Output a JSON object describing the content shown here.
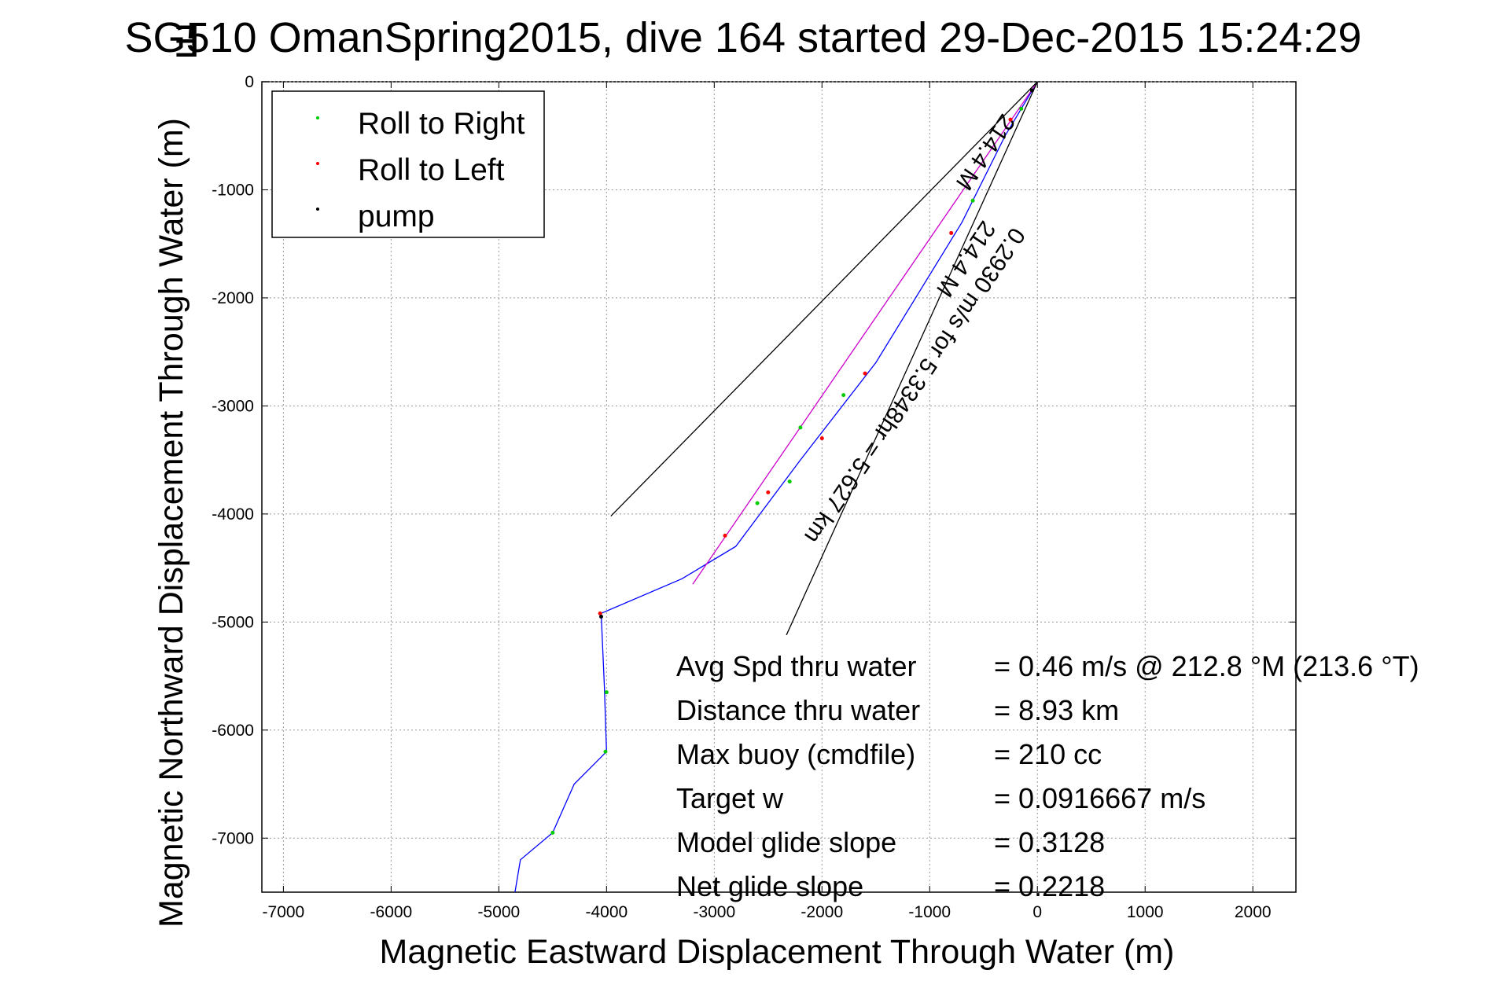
{
  "chart_data": {
    "type": "scatter",
    "title": "SG510 OmanSpring2015, dive 164 started 29-Dec-2015 15:24:29",
    "title_overlap_glyph": "∃",
    "xlabel": "Magnetic Eastward Displacement Through Water (m)",
    "ylabel": "Magnetic Northward Displacement Through Water (m)",
    "xlim": [
      -7200,
      2400
    ],
    "ylim": [
      -7500,
      0
    ],
    "grid": true,
    "legend_position": "top-left",
    "xticks": [
      -7000,
      -6000,
      -5000,
      -4000,
      -3000,
      -2000,
      -1000,
      0,
      1000,
      2000
    ],
    "yticks": [
      0,
      -1000,
      -2000,
      -3000,
      -4000,
      -5000,
      -6000,
      -7000
    ],
    "series": [
      {
        "name": "track",
        "kind": "line",
        "color": "#0000ff",
        "points": [
          [
            0,
            0
          ],
          [
            -300,
            -500
          ],
          [
            -700,
            -1300
          ],
          [
            -1500,
            -2600
          ],
          [
            -2200,
            -3500
          ],
          [
            -2800,
            -4300
          ],
          [
            -3300,
            -4600
          ],
          [
            -4050,
            -4920
          ],
          [
            -4020,
            -5600
          ],
          [
            -4000,
            -6200
          ],
          [
            -4300,
            -6500
          ],
          [
            -4500,
            -6950
          ],
          [
            -4800,
            -7200
          ],
          [
            -4850,
            -7500
          ]
        ]
      },
      {
        "name": "vector",
        "kind": "line",
        "color": "#cc00cc",
        "points": [
          [
            0,
            0
          ],
          [
            -3200,
            -4650
          ]
        ]
      },
      {
        "name": "cone",
        "kind": "line",
        "color": "#000000",
        "points": [
          [
            -3960,
            -4020
          ],
          [
            0,
            0
          ],
          [
            -2330,
            -5120
          ]
        ]
      },
      {
        "name": "Roll to Right",
        "kind": "points",
        "color": "#00cc00",
        "points": [
          [
            -150,
            -250
          ],
          [
            -600,
            -1100
          ],
          [
            -1800,
            -2900
          ],
          [
            -2300,
            -3700
          ],
          [
            -4000,
            -5650
          ],
          [
            -4010,
            -6200
          ],
          [
            -4500,
            -6950
          ],
          [
            -2600,
            -3900
          ],
          [
            -2200,
            -3200
          ]
        ]
      },
      {
        "name": "Roll to Left",
        "kind": "points",
        "color": "#ff0000",
        "points": [
          [
            -250,
            -350
          ],
          [
            -800,
            -1400
          ],
          [
            -1600,
            -2700
          ],
          [
            -2000,
            -3300
          ],
          [
            -4060,
            -4920
          ],
          [
            -2900,
            -4200
          ],
          [
            -2500,
            -3800
          ]
        ]
      },
      {
        "name": "pump",
        "kind": "points",
        "color": "#000000",
        "points": [
          [
            -50,
            -80
          ],
          [
            -4050,
            -4950
          ]
        ]
      }
    ],
    "annotations": {
      "diagonal_lines": [
        "0.2930 m/s for 5.3348hr = 5.627 km",
        "214.4 M"
      ],
      "info_rows": [
        {
          "label": "Avg Spd thru water",
          "value": "=  0.46 m/s @ 212.8 °M (213.6 °T)"
        },
        {
          "label": "Distance thru water",
          "value": "=  8.93 km"
        },
        {
          "label": "Max buoy (cmdfile)",
          "value": "= 210 cc"
        },
        {
          "label": "Target w",
          "value": "= 0.0916667 m/s"
        },
        {
          "label": "Model glide slope",
          "value": "= 0.3128"
        },
        {
          "label": "Net glide slope",
          "value": "= 0.2218"
        }
      ]
    }
  },
  "legend": {
    "items": [
      {
        "label": "Roll to Right",
        "color": "#00cc00"
      },
      {
        "label": "Roll to Left",
        "color": "#ff0000"
      },
      {
        "label": "pump",
        "color": "#000000"
      }
    ]
  }
}
